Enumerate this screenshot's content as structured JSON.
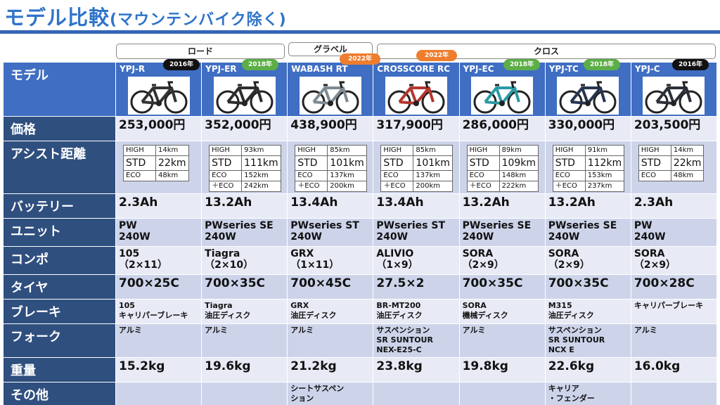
{
  "title": "モデル比較",
  "title_sub": "(マウンテンバイク除く)",
  "categories": {
    "road": "ロード",
    "gravel": "グラベル",
    "cross": "クロス"
  },
  "row_labels": {
    "model": "モデル",
    "price": "価格",
    "assist": "アシスト距離",
    "battery": "バッテリー",
    "unit": "ユニット",
    "component": "コンポ",
    "tire": "タイヤ",
    "brake": "ブレーキ",
    "fork": "フォーク",
    "weight": "重量",
    "other": "その他"
  },
  "models": [
    {
      "name": "YPJ-R",
      "year": "2016年",
      "badge_color": "#111111",
      "bike_color": "#333333",
      "price": "253,000円",
      "assist": [
        [
          "HIGH",
          "14km"
        ],
        [
          "STD",
          "22km"
        ],
        [
          "ECO",
          "48km"
        ]
      ],
      "battery": "2.3Ah",
      "unit": [
        "PW",
        "240W"
      ],
      "component": [
        "105",
        "（2×11）"
      ],
      "tire": "700×25C",
      "brake": [
        "105",
        "キャリパーブレーキ"
      ],
      "fork": [
        "アルミ"
      ],
      "weight": "15.2kg",
      "other": []
    },
    {
      "name": "YPJ-ER",
      "year": "2018年",
      "badge_color": "#5cae46",
      "bike_color": "#2d2d2d",
      "price": "352,000円",
      "assist": [
        [
          "HIGH",
          "93km"
        ],
        [
          "STD",
          "111km"
        ],
        [
          "ECO",
          "152km"
        ],
        [
          "＋ECO",
          "242km"
        ]
      ],
      "battery": "13.2Ah",
      "unit": [
        "PWseries SE",
        "240W"
      ],
      "component": [
        "Tiagra",
        "（2×10）"
      ],
      "tire": "700×35C",
      "brake": [
        "Tiagra",
        "油圧ディスク"
      ],
      "fork": [
        "アルミ"
      ],
      "weight": "19.6kg",
      "other": []
    },
    {
      "name": "WABASH RT",
      "year": "2022年",
      "badge_color": "#ee7d2e",
      "bike_color": "#7d8a93",
      "price": "438,900円",
      "assist": [
        [
          "HIGH",
          "85km"
        ],
        [
          "STD",
          "101km"
        ],
        [
          "ECO",
          "137km"
        ],
        [
          "＋ECO",
          "200km"
        ]
      ],
      "battery": "13.4Ah",
      "unit": [
        "PWseries ST",
        "240W"
      ],
      "component": [
        "GRX",
        "（1×11）"
      ],
      "tire": "700×45C",
      "brake": [
        "GRX",
        "油圧ディスク"
      ],
      "fork": [
        "アルミ"
      ],
      "weight": "21.2kg",
      "other": [
        "シートサスペン",
        "ション"
      ]
    },
    {
      "name": "CROSSCORE RC",
      "year": "2022年",
      "badge_color": "#ee7d2e",
      "bike_color": "#b5352e",
      "price": "317,900円",
      "assist": [
        [
          "HIGH",
          "85km"
        ],
        [
          "STD",
          "101km"
        ],
        [
          "ECO",
          "137km"
        ],
        [
          "＋ECO",
          "200km"
        ]
      ],
      "battery": "13.4Ah",
      "unit": [
        "PWseries ST",
        "240W"
      ],
      "component": [
        "ALIVIO",
        "（1×9）"
      ],
      "tire": "27.5×2",
      "brake": [
        "BR-MT200",
        "油圧ディスク"
      ],
      "fork": [
        "サスペンション",
        "SR SUNTOUR",
        "NEX-E25-C"
      ],
      "weight": "23.8kg",
      "other": []
    },
    {
      "name": "YPJ-EC",
      "year": "2018年",
      "badge_color": "#5cae46",
      "bike_color": "#2a9aa5",
      "price": "286,000円",
      "assist": [
        [
          "HIGH",
          "89km"
        ],
        [
          "STD",
          "109km"
        ],
        [
          "ECO",
          "148km"
        ],
        [
          "＋ECO",
          "222km"
        ]
      ],
      "battery": "13.2Ah",
      "unit": [
        "PWseries SE",
        "240W"
      ],
      "component": [
        "SORA",
        "（2×9）"
      ],
      "tire": "700×35C",
      "brake": [
        "SORA",
        "機械ディスク"
      ],
      "fork": [
        "アルミ"
      ],
      "weight": "19.8kg",
      "other": []
    },
    {
      "name": "YPJ-TC",
      "year": "2018年",
      "badge_color": "#5cae46",
      "bike_color": "#27344f",
      "price": "330,000円",
      "assist": [
        [
          "HIGH",
          "91km"
        ],
        [
          "STD",
          "112km"
        ],
        [
          "ECO",
          "153km"
        ],
        [
          "＋ECO",
          "237km"
        ]
      ],
      "battery": "13.2Ah",
      "unit": [
        "PWseries SE",
        "240W"
      ],
      "component": [
        "SORA",
        "（2×9）"
      ],
      "tire": "700×35C",
      "brake": [
        "M315",
        "油圧ディスク"
      ],
      "fork": [
        "サスペンション",
        "SR SUNTOUR",
        "NCX E"
      ],
      "weight": "22.6kg",
      "other": [
        "キャリア",
        "・フェンダー"
      ]
    },
    {
      "name": "YPJ-C",
      "year": "2016年",
      "badge_color": "#111111",
      "bike_color": "#2b2f3a",
      "price": "203,500円",
      "assist": [
        [
          "HIGH",
          "14km"
        ],
        [
          "STD",
          "22km"
        ],
        [
          "ECO",
          "48km"
        ]
      ],
      "battery": "2.3Ah",
      "unit": [
        "PW",
        "240W"
      ],
      "component": [
        "SORA",
        "（2×9）"
      ],
      "tire": "700×28C",
      "brake": [
        "キャリパーブレーキ"
      ],
      "fork": [
        "アルミ"
      ],
      "weight": "16.0kg",
      "other": []
    }
  ]
}
